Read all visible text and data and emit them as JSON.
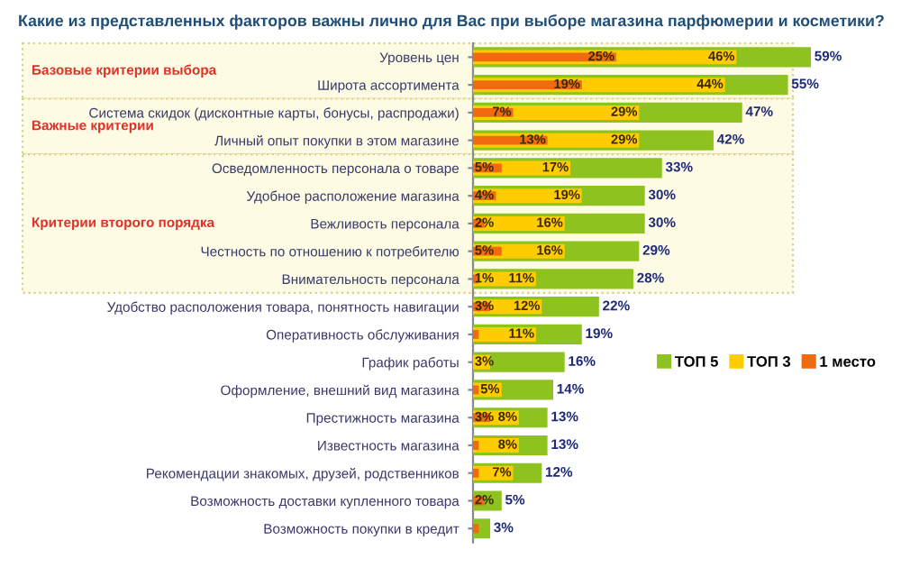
{
  "chart_data": {
    "type": "bar",
    "orientation": "horizontal",
    "title": "Какие из представленных факторов важны лично для Вас при выборе магазина парфюмерии и косметики?",
    "categories": [
      "Уровень цен",
      "Широта ассортимента",
      "Система скидок (дисконтные карты, бонусы, распродажи)",
      "Личный опыт покупки в этом магазине",
      "Осведомленность персонала о товаре",
      "Удобное расположение магазина",
      "Вежливость персонала",
      "Честность по отношению к потребителю",
      "Внимательность персонала",
      "Удобство расположения товара, понятность навигации",
      "Оперативность обслуживания",
      "График работы",
      "Оформление, внешний вид магазина",
      "Престижность магазина",
      "Известность магазина",
      "Рекомендации знакомых, друзей, родственников",
      "Возможность доставки купленного товара",
      "Возможность покупки в кредит"
    ],
    "series": [
      {
        "name": "ТОП 5",
        "color": "#8dc21f",
        "values": [
          59,
          55,
          47,
          42,
          33,
          30,
          30,
          29,
          28,
          22,
          19,
          16,
          14,
          13,
          13,
          12,
          5,
          3
        ],
        "value_labels": [
          "59%",
          "55%",
          "47%",
          "42%",
          "33%",
          "30%",
          "30%",
          "29%",
          "28%",
          "22%",
          "19%",
          "16%",
          "14%",
          "13%",
          "13%",
          "12%",
          "5%",
          "3%"
        ]
      },
      {
        "name": "ТОП 3",
        "color": "#ffcc00",
        "values": [
          46,
          44,
          29,
          29,
          17,
          19,
          16,
          16,
          11,
          12,
          11,
          3,
          5,
          8,
          8,
          7,
          null,
          null
        ],
        "value_labels": [
          "46%",
          "44%",
          "29%",
          "29%",
          "17%",
          "19%",
          "16%",
          "16%",
          "11%",
          "12%",
          "11%",
          "3%",
          "5%",
          "8%",
          "8%",
          "7%",
          null,
          null
        ]
      },
      {
        "name": "1 место",
        "color": "#f06a0f",
        "values": [
          25,
          19,
          7,
          13,
          5,
          4,
          2,
          5,
          1,
          3,
          1,
          null,
          1,
          3,
          1,
          1,
          2,
          1
        ],
        "value_labels": [
          "25%",
          "19%",
          "7%",
          "13%",
          "5%",
          "4%",
          "2%",
          "5%",
          "1%",
          "3%",
          null,
          null,
          null,
          "3%",
          null,
          null,
          "2%",
          null
        ]
      }
    ],
    "bands": [
      {
        "axis": "y",
        "from": "Уровень цен",
        "to": "Широта ассортимента",
        "label": "Базовые критерии выбора",
        "color": "#fdfbe3"
      },
      {
        "axis": "y",
        "from": "Система скидок (дисконтные карты, бонусы, распродажи)",
        "to": "Личный опыт покупки в этом магазине",
        "label": "Важные критерии",
        "color": "#fdfbe3"
      },
      {
        "axis": "y",
        "from": "Осведомленность персонала о товаре",
        "to": "Внимательность персонала",
        "label": "Критерии второго порядка",
        "color": "#fdfbe3"
      }
    ],
    "legend": "right",
    "grid": false
  }
}
